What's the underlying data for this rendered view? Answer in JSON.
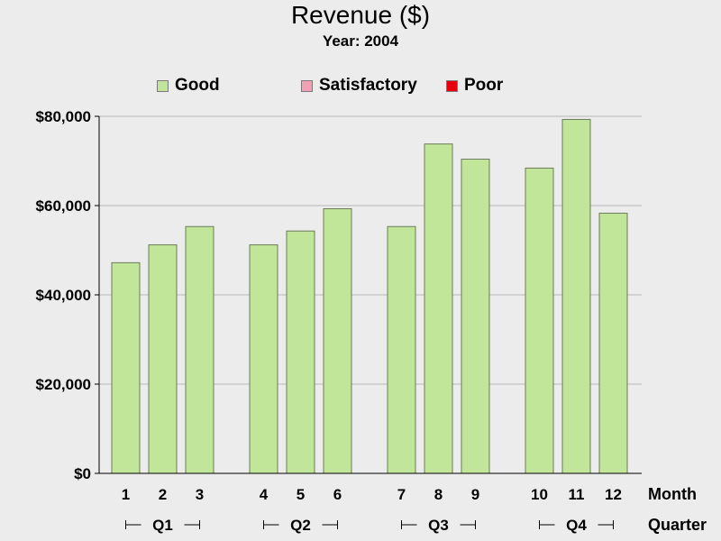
{
  "colors": {
    "good": "#c2e699",
    "satisfactory": "#f4a0b4",
    "poor": "#e8000b",
    "bar_outline": "#6b7b5b",
    "grid": "#b9b9b9",
    "axis": "#000000"
  },
  "chart_data": {
    "type": "bar",
    "title": "Revenue ($)",
    "subtitle": "Year: 2004",
    "legend": {
      "placement": "top",
      "entries": [
        {
          "label": "Good",
          "color": "#c2e699"
        },
        {
          "label": "Satisfactory",
          "color": "#f4a0b4"
        },
        {
          "label": "Poor",
          "color": "#e8000b"
        }
      ]
    },
    "categories": [
      "1",
      "2",
      "3",
      "4",
      "5",
      "6",
      "7",
      "8",
      "9",
      "10",
      "11",
      "12"
    ],
    "groups": [
      {
        "label": "Q1",
        "months": [
          "1",
          "2",
          "3"
        ]
      },
      {
        "label": "Q2",
        "months": [
          "4",
          "5",
          "6"
        ]
      },
      {
        "label": "Q3",
        "months": [
          "7",
          "8",
          "9"
        ]
      },
      {
        "label": "Q4",
        "months": [
          "10",
          "11",
          "12"
        ]
      }
    ],
    "values": [
      47200,
      51200,
      55300,
      51200,
      54300,
      59300,
      55300,
      73800,
      70400,
      68400,
      79300,
      58300
    ],
    "xlabel_month": "Month",
    "xlabel_quarter": "Quarter",
    "ylabel": "",
    "ylim": [
      0,
      80000
    ],
    "yticks": [
      0,
      20000,
      40000,
      60000,
      80000
    ],
    "ytick_labels": [
      "$0",
      "$20,000",
      "$40,000",
      "$60,000",
      "$80,000"
    ],
    "grid": true
  }
}
